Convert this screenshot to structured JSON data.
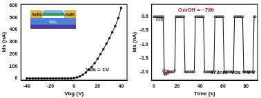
{
  "chart_data": [
    {
      "type": "line",
      "color": "#000000",
      "marker": "square",
      "x_label": "Vbg (V)",
      "y_label": "Ids (nA)",
      "x": [
        -40,
        -37.5,
        -35,
        -32.5,
        -30,
        -27.5,
        -25,
        -22.5,
        -20,
        -17.5,
        -15,
        -12.5,
        -10,
        -7.5,
        -5,
        -2.5,
        0,
        2.5,
        5,
        7.5,
        10,
        12.5,
        15,
        17.5,
        20,
        22.5,
        25,
        27.5,
        30,
        32.5,
        35,
        37.5,
        40
      ],
      "values": [
        0,
        0,
        0,
        0,
        0,
        0,
        0,
        0,
        0,
        0,
        0,
        0,
        0,
        0,
        0,
        1,
        3,
        8,
        16,
        30,
        48,
        70,
        95,
        125,
        160,
        200,
        240,
        285,
        330,
        380,
        430,
        495,
        580
      ],
      "xlim": [
        -45,
        45
      ],
      "xticks": [
        -40,
        -20,
        0,
        20,
        40
      ],
      "ylim": [
        -15,
        610
      ],
      "yticks": [
        0,
        100,
        200,
        300,
        400,
        500,
        600
      ],
      "annotations": [
        {
          "text": "Vds = 1V",
          "color": "#000000"
        }
      ],
      "inset_labels": [
        "Au/Ni",
        "Au/Ni",
        "SiO₂"
      ]
    },
    {
      "type": "line",
      "color": "#000000",
      "marker": "square",
      "x_label": "Time (s)",
      "y_label": "Ids (nA)",
      "x": [
        0,
        1,
        2,
        3,
        4,
        5,
        6,
        7,
        8,
        9,
        10,
        11,
        12,
        13,
        14,
        15,
        16,
        17,
        18,
        19,
        20,
        21,
        22,
        23,
        24,
        25,
        26,
        27,
        28,
        29,
        30,
        31,
        32,
        33,
        34,
        35,
        36,
        37,
        38,
        39,
        40,
        41,
        42,
        43,
        44,
        45,
        46,
        47,
        48,
        49,
        50,
        51,
        52,
        53,
        54,
        55,
        56,
        57,
        58,
        59,
        60,
        61,
        62,
        63,
        64,
        65,
        66,
        67,
        68,
        69,
        70,
        71,
        72,
        73,
        74,
        75,
        76,
        77,
        78,
        79,
        80,
        81,
        82,
        83,
        84,
        85,
        86,
        87,
        88
      ],
      "values": [
        0,
        0,
        0,
        0,
        0,
        0,
        0,
        0,
        0,
        -2.05,
        -2.1,
        -2.05,
        -2.05,
        -2.0,
        -2.0,
        -2.0,
        -2.0,
        -2.0,
        -1.95,
        0,
        0,
        0,
        0,
        0,
        0,
        0,
        0,
        -2.0,
        -2.0,
        -2.0,
        -2.0,
        -2.0,
        -2.0,
        -2.0,
        -2.0,
        -2.0,
        0,
        0,
        0,
        0,
        0,
        0,
        0,
        0,
        -2.0,
        -2.0,
        -2.0,
        -2.0,
        -2.0,
        -2.0,
        -2.0,
        -2.0,
        -2.0,
        0,
        0,
        0,
        0,
        0,
        0,
        0,
        0,
        -2.0,
        -2.0,
        -2.0,
        -2.0,
        -2.0,
        -2.0,
        -2.0,
        -2.0,
        -2.0,
        0,
        0,
        0,
        0,
        0,
        0,
        0,
        0,
        -2.0,
        -2.0,
        -2.0,
        -2.0,
        -2.0,
        -2.0,
        -2.0,
        -2.0,
        -2.0,
        0,
        0
      ],
      "xlim": [
        -2,
        90
      ],
      "xticks": [
        0,
        20,
        40,
        60,
        80
      ],
      "ylim": [
        -2.3,
        0.45
      ],
      "yticks": [
        {
          "value": -2,
          "label": "-2.0"
        },
        -1.5,
        {
          "value": -1,
          "label": "-1.0"
        },
        -0.5,
        {
          "value": 0,
          "label": "0.0"
        }
      ],
      "annotations": [
        {
          "text": "On/Off = ~780",
          "color": "#8b1a1a"
        },
        {
          "text": "Off",
          "color": "#8b1a1a"
        },
        {
          "text": "On",
          "color": "#8b1a1a"
        },
        {
          "text": "473nm  Vds = 0 V",
          "color": "#000000"
        }
      ]
    }
  ]
}
